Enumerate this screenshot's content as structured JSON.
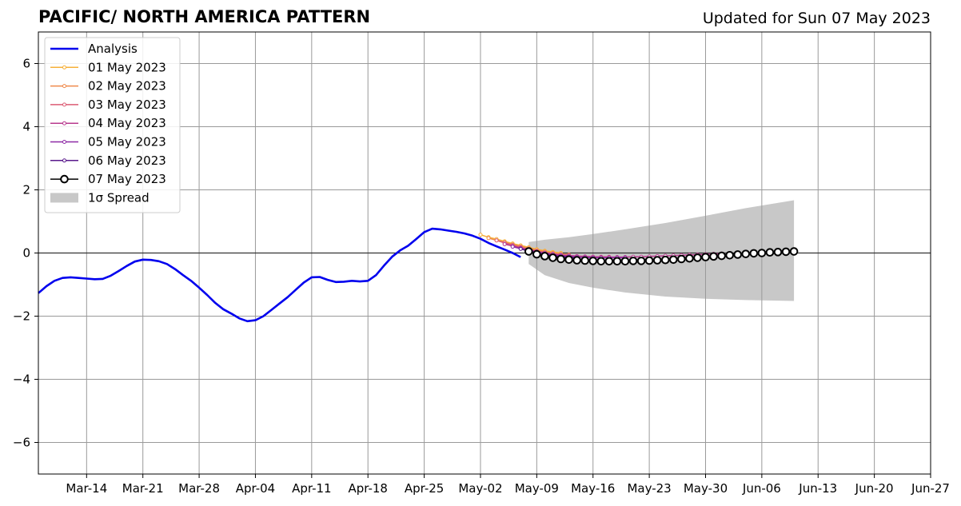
{
  "chart_data": {
    "type": "line",
    "title": "PACIFIC/ NORTH AMERICA PATTERN",
    "subtitle": "Updated for Sun 07 May 2023",
    "xlabel": "",
    "ylabel": "",
    "x_range": [
      "2023-03-08",
      "2023-06-27"
    ],
    "ylim": [
      -7,
      7
    ],
    "x_ticks": [
      {
        "date": "2023-03-14",
        "label": "Mar-14"
      },
      {
        "date": "2023-03-21",
        "label": "Mar-21"
      },
      {
        "date": "2023-03-28",
        "label": "Mar-28"
      },
      {
        "date": "2023-04-04",
        "label": "Apr-04"
      },
      {
        "date": "2023-04-11",
        "label": "Apr-11"
      },
      {
        "date": "2023-04-18",
        "label": "Apr-18"
      },
      {
        "date": "2023-04-25",
        "label": "Apr-25"
      },
      {
        "date": "2023-05-02",
        "label": "May-02"
      },
      {
        "date": "2023-05-09",
        "label": "May-09"
      },
      {
        "date": "2023-05-16",
        "label": "May-16"
      },
      {
        "date": "2023-05-23",
        "label": "May-23"
      },
      {
        "date": "2023-05-30",
        "label": "May-30"
      },
      {
        "date": "2023-06-06",
        "label": "Jun-06"
      },
      {
        "date": "2023-06-13",
        "label": "Jun-13"
      },
      {
        "date": "2023-06-20",
        "label": "Jun-20"
      },
      {
        "date": "2023-06-27",
        "label": "Jun-27"
      }
    ],
    "y_ticks": [
      {
        "value": 6,
        "label": "6"
      },
      {
        "value": 4,
        "label": "4"
      },
      {
        "value": 2,
        "label": "2"
      },
      {
        "value": 0,
        "label": "0"
      },
      {
        "value": -2,
        "label": "−2"
      },
      {
        "value": -4,
        "label": "−4"
      },
      {
        "value": -6,
        "label": "−6"
      }
    ],
    "grid": true,
    "legend_position": "top-left",
    "series": [
      {
        "name": "Analysis",
        "color": "#0000ee",
        "style": "thick-line",
        "x": [
          "2023-03-08",
          "2023-03-09",
          "2023-03-10",
          "2023-03-11",
          "2023-03-12",
          "2023-03-13",
          "2023-03-14",
          "2023-03-15",
          "2023-03-16",
          "2023-03-17",
          "2023-03-18",
          "2023-03-19",
          "2023-03-20",
          "2023-03-21",
          "2023-03-22",
          "2023-03-23",
          "2023-03-24",
          "2023-03-25",
          "2023-03-26",
          "2023-03-27",
          "2023-03-28",
          "2023-03-29",
          "2023-03-30",
          "2023-03-31",
          "2023-04-01",
          "2023-04-02",
          "2023-04-03",
          "2023-04-04",
          "2023-04-05",
          "2023-04-06",
          "2023-04-07",
          "2023-04-08",
          "2023-04-09",
          "2023-04-10",
          "2023-04-11",
          "2023-04-12",
          "2023-04-13",
          "2023-04-14",
          "2023-04-15",
          "2023-04-16",
          "2023-04-17",
          "2023-04-18",
          "2023-04-19",
          "2023-04-20",
          "2023-04-21",
          "2023-04-22",
          "2023-04-23",
          "2023-04-24",
          "2023-04-25",
          "2023-04-26",
          "2023-04-27",
          "2023-04-28",
          "2023-04-29",
          "2023-04-30",
          "2023-05-01",
          "2023-05-02",
          "2023-05-03",
          "2023-05-04",
          "2023-05-05",
          "2023-05-06",
          "2023-05-07"
        ],
        "y": [
          -1.27,
          -1.05,
          -0.88,
          -0.79,
          -0.77,
          -0.79,
          -0.81,
          -0.83,
          -0.82,
          -0.72,
          -0.57,
          -0.41,
          -0.27,
          -0.21,
          -0.22,
          -0.26,
          -0.35,
          -0.51,
          -0.7,
          -0.88,
          -1.1,
          -1.33,
          -1.58,
          -1.78,
          -1.92,
          -2.07,
          -2.16,
          -2.13,
          -2.0,
          -1.8,
          -1.6,
          -1.4,
          -1.17,
          -0.94,
          -0.77,
          -0.76,
          -0.85,
          -0.92,
          -0.91,
          -0.88,
          -0.9,
          -0.88,
          -0.7,
          -0.4,
          -0.12,
          0.08,
          0.23,
          0.44,
          0.66,
          0.77,
          0.75,
          0.71,
          0.67,
          0.62,
          0.55,
          0.45,
          0.32,
          0.21,
          0.11,
          0.0,
          -0.13
        ]
      },
      {
        "name": "01 May 2023",
        "color": "#f6b03a",
        "style": "small-markers",
        "x": [
          "2023-05-02",
          "2023-05-03",
          "2023-05-04",
          "2023-05-05",
          "2023-05-06",
          "2023-05-07",
          "2023-05-08",
          "2023-05-09",
          "2023-05-10",
          "2023-05-11",
          "2023-05-12"
        ],
        "y": [
          0.58,
          0.5,
          0.44,
          0.37,
          0.3,
          0.24,
          0.18,
          0.12,
          0.07,
          0.03,
          0.0
        ]
      },
      {
        "name": "02 May 2023",
        "color": "#ef8a4b",
        "style": "small-markers",
        "x": [
          "2023-05-03",
          "2023-05-04",
          "2023-05-05",
          "2023-05-06",
          "2023-05-07",
          "2023-05-08",
          "2023-05-09",
          "2023-05-10",
          "2023-05-11",
          "2023-05-12",
          "2023-05-13"
        ],
        "y": [
          0.47,
          0.4,
          0.34,
          0.27,
          0.21,
          0.15,
          0.09,
          0.04,
          0.0,
          -0.03,
          -0.05
        ]
      },
      {
        "name": "03 May 2023",
        "color": "#dc5c74",
        "style": "small-markers",
        "x": [
          "2023-05-04",
          "2023-05-05",
          "2023-05-06",
          "2023-05-07",
          "2023-05-08",
          "2023-05-09",
          "2023-05-10",
          "2023-05-11",
          "2023-05-12",
          "2023-05-13",
          "2023-05-14",
          "2023-05-15",
          "2023-05-16",
          "2023-05-17",
          "2023-05-18"
        ],
        "y": [
          0.4,
          0.32,
          0.25,
          0.18,
          0.12,
          0.06,
          0.01,
          -0.03,
          -0.06,
          -0.08,
          -0.1,
          -0.11,
          -0.12,
          -0.12,
          -0.12
        ]
      },
      {
        "name": "04 May 2023",
        "color": "#b83a8e",
        "style": "small-markers",
        "x": [
          "2023-05-05",
          "2023-05-06",
          "2023-05-07",
          "2023-05-08",
          "2023-05-09",
          "2023-05-10",
          "2023-05-11",
          "2023-05-12",
          "2023-05-13",
          "2023-05-14",
          "2023-05-15",
          "2023-05-16",
          "2023-05-17",
          "2023-05-18",
          "2023-05-19",
          "2023-05-20",
          "2023-05-21",
          "2023-05-22",
          "2023-05-23",
          "2023-05-24",
          "2023-05-25",
          "2023-05-26",
          "2023-05-27",
          "2023-05-28",
          "2023-05-29",
          "2023-05-30",
          "2023-05-31",
          "2023-06-01"
        ],
        "y": [
          0.28,
          0.22,
          0.16,
          0.1,
          0.05,
          0.01,
          -0.03,
          -0.06,
          -0.08,
          -0.1,
          -0.11,
          -0.12,
          -0.13,
          -0.13,
          -0.13,
          -0.13,
          -0.12,
          -0.12,
          -0.11,
          -0.1,
          -0.09,
          -0.08,
          -0.07,
          -0.06,
          -0.05,
          -0.04,
          -0.03,
          -0.02
        ]
      },
      {
        "name": "05 May 2023",
        "color": "#8e2aa6",
        "style": "small-markers",
        "x": [
          "2023-05-06",
          "2023-05-07",
          "2023-05-08",
          "2023-05-09",
          "2023-05-10",
          "2023-05-11",
          "2023-05-12",
          "2023-05-13",
          "2023-05-14",
          "2023-05-15",
          "2023-05-16",
          "2023-05-17",
          "2023-05-18",
          "2023-05-19",
          "2023-05-20"
        ],
        "y": [
          0.2,
          0.14,
          0.08,
          0.03,
          -0.02,
          -0.06,
          -0.09,
          -0.11,
          -0.13,
          -0.14,
          -0.15,
          -0.15,
          -0.15,
          -0.15,
          -0.15
        ]
      },
      {
        "name": "06 May 2023",
        "color": "#5a1a8c",
        "style": "small-markers",
        "x": [
          "2023-05-07",
          "2023-05-08",
          "2023-05-09",
          "2023-05-10",
          "2023-05-11",
          "2023-05-12",
          "2023-05-13",
          "2023-05-14"
        ],
        "y": [
          0.13,
          0.06,
          0.0,
          -0.05,
          -0.09,
          -0.12,
          -0.14,
          -0.16
        ]
      },
      {
        "name": "07 May 2023",
        "color": "#000000",
        "style": "open-circles",
        "x": [
          "2023-05-08",
          "2023-05-09",
          "2023-05-10",
          "2023-05-11",
          "2023-05-12",
          "2023-05-13",
          "2023-05-14",
          "2023-05-15",
          "2023-05-16",
          "2023-05-17",
          "2023-05-18",
          "2023-05-19",
          "2023-05-20",
          "2023-05-21",
          "2023-05-22",
          "2023-05-23",
          "2023-05-24",
          "2023-05-25",
          "2023-05-26",
          "2023-05-27",
          "2023-05-28",
          "2023-05-29",
          "2023-05-30",
          "2023-05-31",
          "2023-06-01",
          "2023-06-02",
          "2023-06-03",
          "2023-06-04",
          "2023-06-05",
          "2023-06-06",
          "2023-06-07",
          "2023-06-08",
          "2023-06-09",
          "2023-06-10"
        ],
        "y": [
          0.05,
          -0.04,
          -0.1,
          -0.15,
          -0.19,
          -0.21,
          -0.23,
          -0.24,
          -0.25,
          -0.26,
          -0.26,
          -0.26,
          -0.26,
          -0.25,
          -0.25,
          -0.24,
          -0.23,
          -0.22,
          -0.21,
          -0.19,
          -0.17,
          -0.15,
          -0.13,
          -0.11,
          -0.09,
          -0.07,
          -0.05,
          -0.03,
          -0.01,
          0.0,
          0.02,
          0.03,
          0.04,
          0.05
        ]
      }
    ],
    "spread": {
      "name": "1σ Spread",
      "color": "#c8c8c8",
      "x": [
        "2023-05-08",
        "2023-05-10",
        "2023-05-13",
        "2023-05-16",
        "2023-05-20",
        "2023-05-25",
        "2023-05-30",
        "2023-06-04",
        "2023-06-10"
      ],
      "upper": [
        0.35,
        0.42,
        0.5,
        0.6,
        0.75,
        0.95,
        1.18,
        1.42,
        1.67
      ],
      "lower": [
        -0.35,
        -0.7,
        -0.95,
        -1.1,
        -1.25,
        -1.38,
        -1.45,
        -1.49,
        -1.52
      ]
    }
  }
}
